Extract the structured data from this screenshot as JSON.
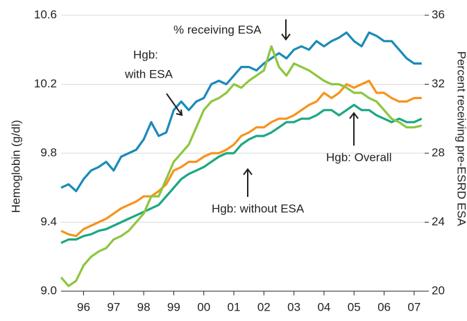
{
  "chart_data": {
    "type": "line",
    "y_label": "Hemoglobin (g/dl)",
    "y2_label": "Percent receiving pre-ESRD ESA",
    "x": [
      1995.75,
      1996.0,
      1996.25,
      1996.5,
      1996.75,
      1997.0,
      1997.25,
      1997.5,
      1997.75,
      1998.0,
      1998.25,
      1998.5,
      1998.75,
      1999.0,
      1999.25,
      1999.5,
      1999.75,
      2000.0,
      2000.25,
      2000.5,
      2000.75,
      2001.0,
      2001.25,
      2001.5,
      2001.75,
      2002.0,
      2002.25,
      2002.5,
      2002.75,
      2003.0,
      2003.25,
      2003.5,
      2003.75,
      2004.0,
      2004.25,
      2004.5,
      2004.75,
      2005.0,
      2005.25,
      2005.5,
      2005.75,
      2006.0,
      2006.25,
      2006.5,
      2006.75,
      2007.0,
      2007.25,
      2007.5,
      2007.75
    ],
    "xlim": [
      1995.75,
      2007.85
    ],
    "xticks": [
      {
        "value": 1996.5,
        "label": "96"
      },
      {
        "value": 1997.5,
        "label": "97"
      },
      {
        "value": 1998.5,
        "label": "98"
      },
      {
        "value": 1999.5,
        "label": "99"
      },
      {
        "value": 2000.5,
        "label": "00"
      },
      {
        "value": 2001.5,
        "label": "01"
      },
      {
        "value": 2002.5,
        "label": "02"
      },
      {
        "value": 2003.5,
        "label": "03"
      },
      {
        "value": 2004.5,
        "label": "04"
      },
      {
        "value": 2005.5,
        "label": "05"
      },
      {
        "value": 2006.5,
        "label": "06"
      },
      {
        "value": 2007.5,
        "label": "07"
      }
    ],
    "ylim": [
      9.0,
      10.6
    ],
    "yticks": [
      {
        "value": 9.0,
        "label": "9.0"
      },
      9.4,
      9.8,
      10.2,
      10.6
    ],
    "y2lim": [
      20,
      36
    ],
    "y2ticks": [
      20,
      24,
      28,
      32,
      36
    ],
    "grid": true,
    "series": [
      {
        "name": "Hgb: with ESA",
        "color": "#1b8bb8",
        "values": [
          9.6,
          9.62,
          9.58,
          9.65,
          9.7,
          9.72,
          9.75,
          9.7,
          9.78,
          9.8,
          9.82,
          9.88,
          9.98,
          9.9,
          9.92,
          10.05,
          10.1,
          10.05,
          10.1,
          10.12,
          10.2,
          10.22,
          10.2,
          10.25,
          10.3,
          10.3,
          10.28,
          10.32,
          10.35,
          10.38,
          10.35,
          10.4,
          10.42,
          10.4,
          10.45,
          10.42,
          10.45,
          10.47,
          10.5,
          10.45,
          10.42,
          10.5,
          10.48,
          10.45,
          10.45,
          10.4,
          10.35,
          10.32,
          10.32
        ]
      },
      {
        "name": "Hgb: Overall",
        "color": "#f7931e",
        "values": [
          9.35,
          9.33,
          9.32,
          9.36,
          9.38,
          9.4,
          9.42,
          9.45,
          9.48,
          9.5,
          9.52,
          9.55,
          9.55,
          9.58,
          9.62,
          9.7,
          9.72,
          9.75,
          9.75,
          9.78,
          9.8,
          9.8,
          9.82,
          9.85,
          9.9,
          9.92,
          9.95,
          9.95,
          9.98,
          10.0,
          10.0,
          10.02,
          10.05,
          10.08,
          10.1,
          10.15,
          10.12,
          10.15,
          10.2,
          10.18,
          10.2,
          10.22,
          10.15,
          10.15,
          10.12,
          10.1,
          10.1,
          10.12,
          10.12
        ]
      },
      {
        "name": "Hgb: without ESA",
        "color": "#1ba784",
        "values": [
          9.28,
          9.3,
          9.3,
          9.32,
          9.33,
          9.35,
          9.36,
          9.38,
          9.4,
          9.42,
          9.44,
          9.46,
          9.48,
          9.5,
          9.55,
          9.6,
          9.65,
          9.68,
          9.7,
          9.72,
          9.75,
          9.78,
          9.8,
          9.8,
          9.85,
          9.88,
          9.9,
          9.9,
          9.92,
          9.95,
          9.98,
          9.98,
          10.0,
          10.0,
          10.02,
          10.05,
          10.05,
          10.02,
          10.05,
          10.08,
          10.05,
          10.05,
          10.02,
          10.0,
          9.98,
          10.0,
          9.98,
          9.98,
          10.0
        ]
      },
      {
        "name": "% receiving ESA",
        "color": "#8dc63f",
        "axis": "y2",
        "values": [
          20.8,
          20.3,
          20.6,
          21.5,
          22.0,
          22.3,
          22.5,
          23.0,
          23.2,
          23.5,
          24.0,
          24.5,
          25.5,
          25.5,
          26.5,
          27.5,
          28.0,
          28.5,
          29.5,
          30.5,
          31.0,
          31.2,
          31.5,
          32.0,
          31.8,
          32.2,
          32.5,
          32.8,
          34.2,
          33.0,
          32.5,
          33.2,
          33.0,
          32.8,
          32.5,
          32.2,
          32.0,
          32.0,
          31.8,
          31.5,
          31.5,
          31.2,
          31.0,
          30.5,
          30.0,
          29.8,
          29.5,
          29.5,
          29.6
        ]
      }
    ],
    "annotations": [
      "Hgb:",
      "with ESA",
      "% receiving ESA",
      "Hgb: Overall",
      "Hgb: without ESA"
    ]
  }
}
